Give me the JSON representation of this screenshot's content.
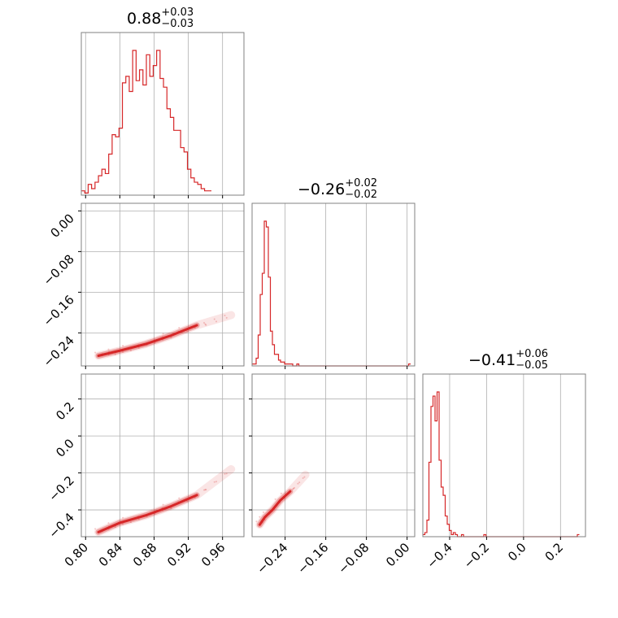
{
  "chart_data": {
    "type": "corner",
    "color": "#d62728",
    "grid_color": "#b0b0b0",
    "axis_color": "#808080",
    "parameters": [
      {
        "title": {
          "median": "0.88",
          "plus": "+0.03",
          "minus": "−0.03"
        },
        "range": [
          0.795,
          0.985
        ],
        "ticks": [
          0.8,
          0.84,
          0.88,
          0.92,
          0.96
        ],
        "tick_labels": [
          "0.80",
          "0.84",
          "0.88",
          "0.92",
          "0.96"
        ],
        "histogram": {
          "edges_start": 0.795,
          "bin_width": 0.004,
          "counts": [
            2,
            1,
            5,
            3,
            6,
            9,
            12,
            10,
            19,
            28,
            27,
            31,
            52,
            55,
            48,
            67,
            53,
            58,
            51,
            65,
            55,
            60,
            67,
            54,
            50,
            40,
            36,
            30,
            30,
            22,
            20,
            12,
            8,
            6,
            5,
            3,
            2,
            2
          ]
        }
      },
      {
        "title": {
          "median": "−0.26",
          "plus": "+0.02",
          "minus": "−0.02"
        },
        "range": [
          -0.305,
          0.015
        ],
        "ticks": [
          0.0,
          -0.08,
          -0.16,
          -0.24
        ],
        "tick_labels": [
          "0.00",
          "−0.08",
          "−0.16",
          "−0.24"
        ],
        "x_ticks": [
          -0.24,
          -0.16,
          -0.08,
          0.0
        ],
        "x_tick_labels": [
          "−0.24",
          "−0.16",
          "−0.08",
          "0.00"
        ],
        "histogram": {
          "edges_start": -0.305,
          "bin_width": 0.004,
          "counts": [
            1,
            1,
            4,
            16,
            37,
            48,
            75,
            72,
            46,
            18,
            11,
            6,
            6,
            3,
            2,
            2,
            1,
            1,
            1,
            1,
            0,
            0,
            1,
            0,
            0,
            0,
            0,
            0,
            0,
            0,
            0,
            0,
            0,
            0,
            0,
            0,
            0,
            0,
            0,
            0,
            0,
            0,
            0,
            0,
            0,
            0,
            0,
            0,
            0,
            0,
            0,
            0,
            0,
            0,
            0,
            0,
            0,
            0,
            0,
            0,
            0,
            0,
            0,
            0,
            0,
            0,
            0,
            0,
            0,
            0,
            0,
            0,
            0,
            0,
            0,
            0,
            0,
            1
          ]
        }
      },
      {
        "title": {
          "median": "−0.41",
          "plus": "+0.06",
          "minus": "−0.05"
        },
        "range": [
          -0.545,
          0.335
        ],
        "ticks": [
          0.2,
          0.0,
          -0.2,
          -0.4
        ],
        "tick_labels": [
          "0.2",
          "0.0",
          "−0.2",
          "−0.4"
        ],
        "x_ticks": [
          -0.4,
          -0.2,
          0.0,
          0.2
        ],
        "x_tick_labels": [
          "−0.4",
          "−0.2",
          "0.0",
          "0.2"
        ],
        "histogram": {
          "edges_start": -0.545,
          "bin_width": 0.011,
          "counts": [
            1,
            2,
            8,
            36,
            63,
            68,
            56,
            70,
            37,
            24,
            20,
            10,
            6,
            3,
            1,
            2,
            1,
            0,
            0,
            1,
            0,
            0,
            0,
            0,
            0,
            0,
            0,
            0,
            0,
            0,
            1,
            0,
            0,
            0,
            0,
            0,
            0,
            0,
            0,
            0,
            0,
            0,
            0,
            0,
            0,
            0,
            0,
            0,
            0,
            0,
            0,
            0,
            0,
            0,
            0,
            0,
            0,
            0,
            0,
            0,
            0,
            0,
            0,
            0,
            0,
            0,
            0,
            0,
            0,
            0,
            0,
            0,
            0,
            0,
            0,
            0,
            1
          ]
        }
      }
    ],
    "pair_panels": [
      {
        "x": 0,
        "y": 1,
        "ridge": [
          [
            0.815,
            -0.285
          ],
          [
            0.84,
            -0.275
          ],
          [
            0.87,
            -0.262
          ],
          [
            0.9,
            -0.245
          ],
          [
            0.93,
            -0.225
          ],
          [
            0.97,
            -0.205
          ]
        ],
        "width": 0.006
      },
      {
        "x": 0,
        "y": 2,
        "ridge": [
          [
            0.815,
            -0.52
          ],
          [
            0.84,
            -0.47
          ],
          [
            0.87,
            -0.43
          ],
          [
            0.9,
            -0.38
          ],
          [
            0.93,
            -0.32
          ],
          [
            0.97,
            -0.18
          ]
        ],
        "width": 0.025
      },
      {
        "x": 1,
        "y": 2,
        "ridge": [
          [
            -0.29,
            -0.48
          ],
          [
            -0.28,
            -0.44
          ],
          [
            -0.265,
            -0.4
          ],
          [
            -0.25,
            -0.35
          ],
          [
            -0.23,
            -0.3
          ],
          [
            -0.2,
            -0.21
          ]
        ],
        "width": 0.03
      }
    ]
  }
}
